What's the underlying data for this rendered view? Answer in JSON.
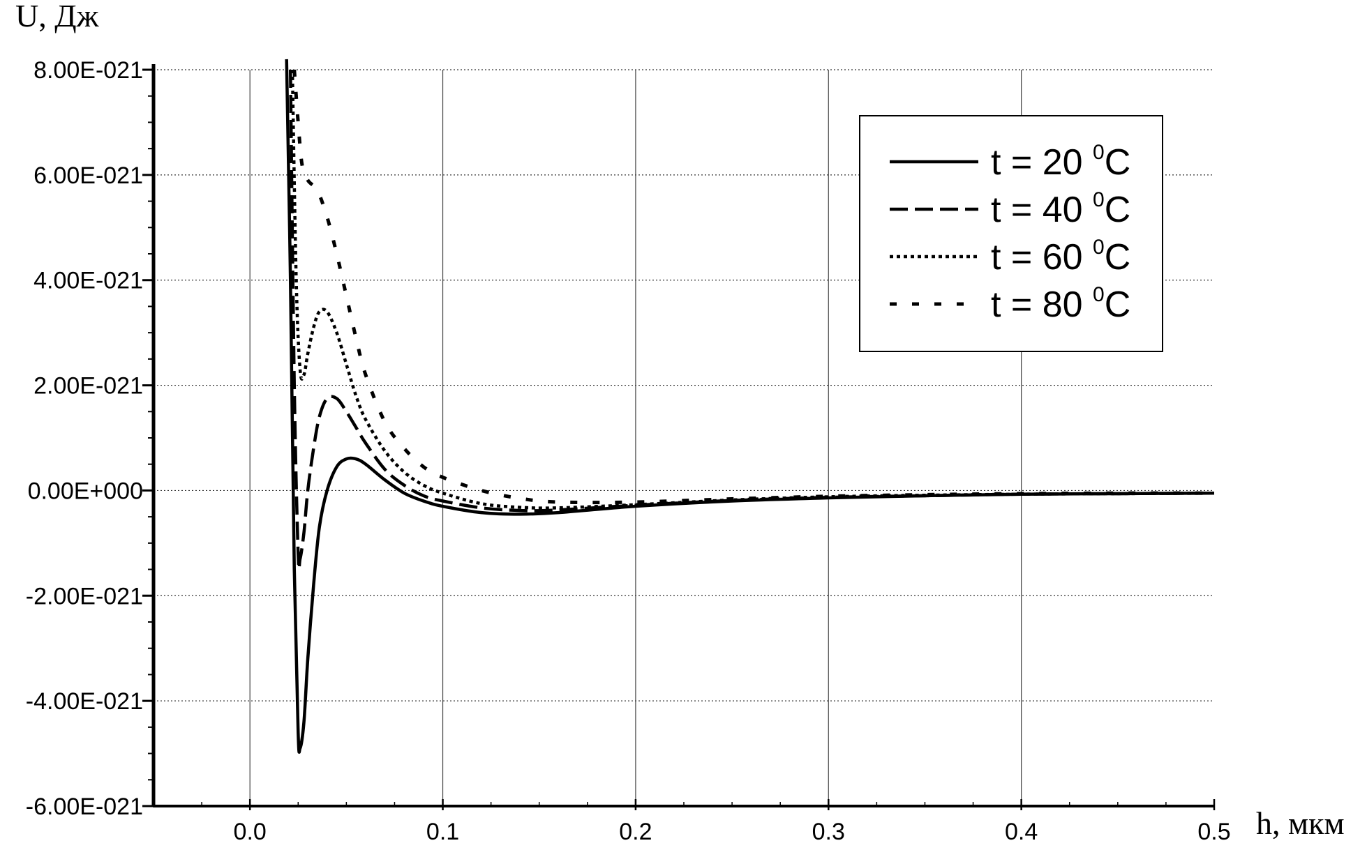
{
  "chart_data": {
    "type": "line",
    "ylabel": "U, Дж",
    "xlabel": "h, мкм",
    "xlim": [
      -0.05,
      0.5
    ],
    "ylim": [
      -6e-21,
      8e-21
    ],
    "x_ticks": [
      0.0,
      0.1,
      0.2,
      0.3,
      0.4,
      0.5
    ],
    "x_tick_labels": [
      "0.0",
      "0.1",
      "0.2",
      "0.3",
      "0.4",
      "0.5"
    ],
    "y_ticks": [
      8e-21,
      6e-21,
      4e-21,
      2e-21,
      0.0,
      -2e-21,
      -4e-21,
      -6e-21
    ],
    "y_tick_labels": [
      "8.00E-021",
      "6.00E-021",
      "4.00E-021",
      "2.00E-021",
      "0.00E+000",
      "-2.00E-021",
      "-4.00E-021",
      "-6.00E-021"
    ],
    "grid": true,
    "legend_position": "top-right",
    "series": [
      {
        "name": "t = 20",
        "unit": "0C",
        "style": "solid",
        "x": [
          0.019,
          0.021,
          0.023,
          0.025,
          0.026,
          0.028,
          0.03,
          0.033,
          0.036,
          0.04,
          0.045,
          0.05,
          0.055,
          0.06,
          0.07,
          0.08,
          0.09,
          0.1,
          0.12,
          0.14,
          0.16,
          0.2,
          0.25,
          0.3,
          0.35,
          0.4,
          0.45,
          0.5
        ],
        "y": [
          8.2e-21,
          4e-21,
          -1.5e-21,
          -4.6e-21,
          -4.9e-21,
          -4.4e-21,
          -3.2e-21,
          -1.8e-21,
          -7e-22,
          0.0,
          4.5e-22,
          6e-22,
          6e-22,
          5e-22,
          2e-22,
          -5e-23,
          -2e-22,
          -3e-22,
          -4.2e-22,
          -4.5e-22,
          -4.2e-22,
          -3e-22,
          -2e-22,
          -1.4e-22,
          -1e-22,
          -7e-23,
          -6e-23,
          -5e-23
        ]
      },
      {
        "name": "t = 40",
        "unit": "0C",
        "style": "dash",
        "x": [
          0.021,
          0.023,
          0.025,
          0.026,
          0.028,
          0.03,
          0.033,
          0.036,
          0.04,
          0.045,
          0.05,
          0.055,
          0.06,
          0.07,
          0.08,
          0.09,
          0.1,
          0.12,
          0.14,
          0.16,
          0.2,
          0.25,
          0.3,
          0.35,
          0.4,
          0.45,
          0.5
        ],
        "y": [
          8e-21,
          2e-21,
          -1.2e-21,
          -1.3e-21,
          -8e-22,
          0.0,
          8e-22,
          1.4e-21,
          1.75e-21,
          1.75e-21,
          1.5e-21,
          1.2e-21,
          9e-22,
          4e-22,
          1e-22,
          -1e-22,
          -2e-22,
          -3.3e-22,
          -3.8e-22,
          -3.7e-22,
          -2.8e-22,
          -1.9e-22,
          -1.3e-22,
          -1e-22,
          -7e-23,
          -6e-23,
          -5e-23
        ]
      },
      {
        "name": "t = 60",
        "unit": "0C",
        "style": "dot",
        "x": [
          0.022,
          0.024,
          0.026,
          0.028,
          0.03,
          0.033,
          0.036,
          0.04,
          0.045,
          0.05,
          0.055,
          0.06,
          0.07,
          0.08,
          0.09,
          0.1,
          0.12,
          0.14,
          0.16,
          0.2,
          0.25,
          0.3,
          0.35,
          0.4,
          0.45,
          0.5
        ],
        "y": [
          8e-21,
          4e-21,
          2.3e-21,
          2.2e-21,
          2.6e-21,
          3.1e-21,
          3.4e-21,
          3.4e-21,
          3e-21,
          2.4e-21,
          1.8e-21,
          1.35e-21,
          7.5e-22,
          3.5e-22,
          1e-22,
          -5e-23,
          -2.5e-22,
          -3.2e-22,
          -3.3e-22,
          -2.7e-22,
          -1.8e-22,
          -1.2e-22,
          -9e-23,
          -7e-23,
          -6e-23,
          -5e-23
        ]
      },
      {
        "name": "t = 80",
        "unit": "0C",
        "style": "sparse-dash",
        "x": [
          0.023,
          0.025,
          0.027,
          0.03,
          0.035,
          0.04,
          0.045,
          0.05,
          0.055,
          0.06,
          0.07,
          0.08,
          0.09,
          0.1,
          0.12,
          0.14,
          0.16,
          0.2,
          0.25,
          0.3,
          0.35,
          0.4,
          0.45,
          0.5
        ],
        "y": [
          8e-21,
          7e-21,
          6.2e-21,
          5.9e-21,
          5.7e-21,
          5.2e-21,
          4.5e-21,
          3.7e-21,
          2.9e-21,
          2.2e-21,
          1.3e-21,
          8e-22,
          4.5e-22,
          2.5e-22,
          0.0,
          -1.5e-22,
          -2.2e-22,
          -2.2e-22,
          -1.6e-22,
          -1.1e-22,
          -8e-23,
          -6e-23,
          -5e-23,
          -5e-23
        ]
      }
    ]
  }
}
